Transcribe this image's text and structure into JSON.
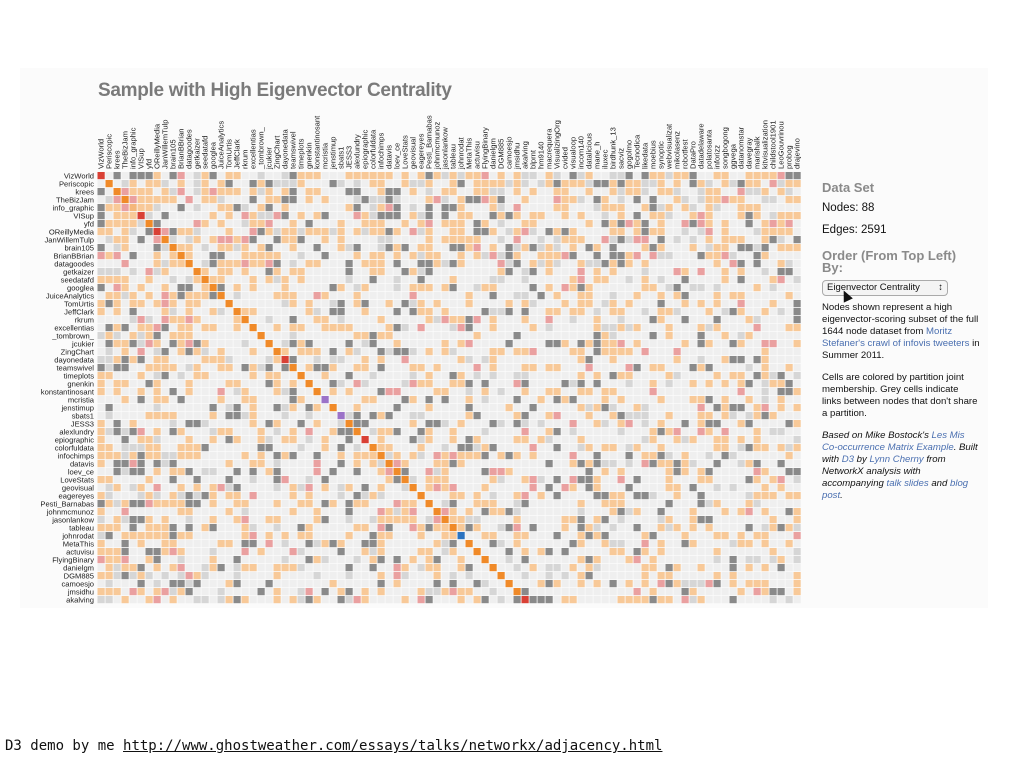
{
  "chart_data": {
    "type": "heatmap",
    "title": "Sample with High Eigenvector Centrality",
    "nodes": [
      "VizWorld",
      "Periscopic",
      "krees",
      "TheBizJam",
      "info_graphic",
      "VISup",
      "yfd",
      "OReillyMedia",
      "JanWillemTulp",
      "brain105",
      "BrianBBrian",
      "datagoodes",
      "getkaizer",
      "seedatafd",
      "googlea",
      "JuiceAnalytics",
      "TomUrtis",
      "JeffClark",
      "rkrum",
      "excellentias",
      "_tombrown_",
      "jcukier",
      "ZingChart",
      "dayonedata",
      "teamswivel",
      "timeplots",
      "gnenkin",
      "konstantinosant",
      "mcristia",
      "jenstimup",
      "sbats1",
      "JESS3",
      "alexlundry",
      "epiographic",
      "colorfuldata",
      "infochimps",
      "datavis",
      "loev_ce",
      "LoveStats",
      "geovisual",
      "eagereyes",
      "Pesti_Barnabas",
      "johnmcmunoz",
      "jasonlankow",
      "tableau",
      "johnrodat",
      "MetaThis",
      "actuvisu",
      "FlyingBinary",
      "danielgm",
      "DGM885",
      "camoesjo",
      "jmsidhu",
      "akalving"
    ],
    "column_extra": [
      "blprnt",
      "hm9140",
      "macrequera",
      "VisualizingOrg",
      "cvided",
      "visualoop",
      "incom140",
      "datalicious",
      "mane_h",
      "iluxec",
      "birdhunk_13",
      "sacviz",
      "gogolmo",
      "Tecnodica",
      "likedata",
      "moebius",
      "synoptic",
      "webvisualizat",
      "mikolasenz",
      "robotfest",
      "DataPro",
      "datadelaware",
      "polatosanta",
      "inforizz",
      "songbogong",
      "ggvega",
      "datanomstar",
      "davegray",
      "marishalk",
      "kitvisualization",
      "childstool1901",
      "LeoGouvrinou",
      "probog",
      "drajevino"
    ],
    "diagonal_colors": {
      "0": "#d94035",
      "2": "#f08a28",
      "4": "#f5b77a",
      "5": "#d94035",
      "7": "#d94035",
      "23": "#d94035",
      "28": "#9b72c8",
      "30": "#9b72c8",
      "33": "#d94035",
      "45": "#2b73c0",
      "53": "#d94035"
    },
    "legend": null
  },
  "panel": {
    "data_set_heading": "Data Set",
    "nodes_label": "Nodes: 88",
    "edges_label": "Edges: 2591",
    "order_heading": "Order (From Top Left) By:",
    "order_selected": "Eigenvector Centrality",
    "desc1_a": "Nodes shown represent a high eigenvector-scoring subset of the full 1644 node dataset from ",
    "desc1_link": "Moritz Stefaner's crawl of infovis tweeters",
    "desc1_b": " in Summer 2011.",
    "desc2": "Cells are colored by partition joint membership. Grey cells indicate links between nodes that don't share a partition.",
    "desc3_a": "Based on Mike Bostock's ",
    "desc3_link1": "Les Mis Co-occurrence Matrix Example",
    "desc3_b": ". Built with ",
    "desc3_link2": "D3",
    "desc3_c": " by ",
    "desc3_link3": "Lynn Cherny",
    "desc3_d": " from NetworkX analysis with accompanying ",
    "desc3_link4": "talk slides",
    "desc3_e": " and ",
    "desc3_link5": "blog post",
    "desc3_f": "."
  },
  "caption": {
    "text": "D3 demo by me ",
    "url": "http://www.ghostweather.com/essays/talks/networkx/adjacency.html"
  },
  "colors": {
    "orange": "#f08a28",
    "light_orange": "#f8c998",
    "grey": "#8a8a8a",
    "light_grey": "#d6d6d6",
    "pink": "#eaa0a0",
    "empty": "#efefef"
  }
}
